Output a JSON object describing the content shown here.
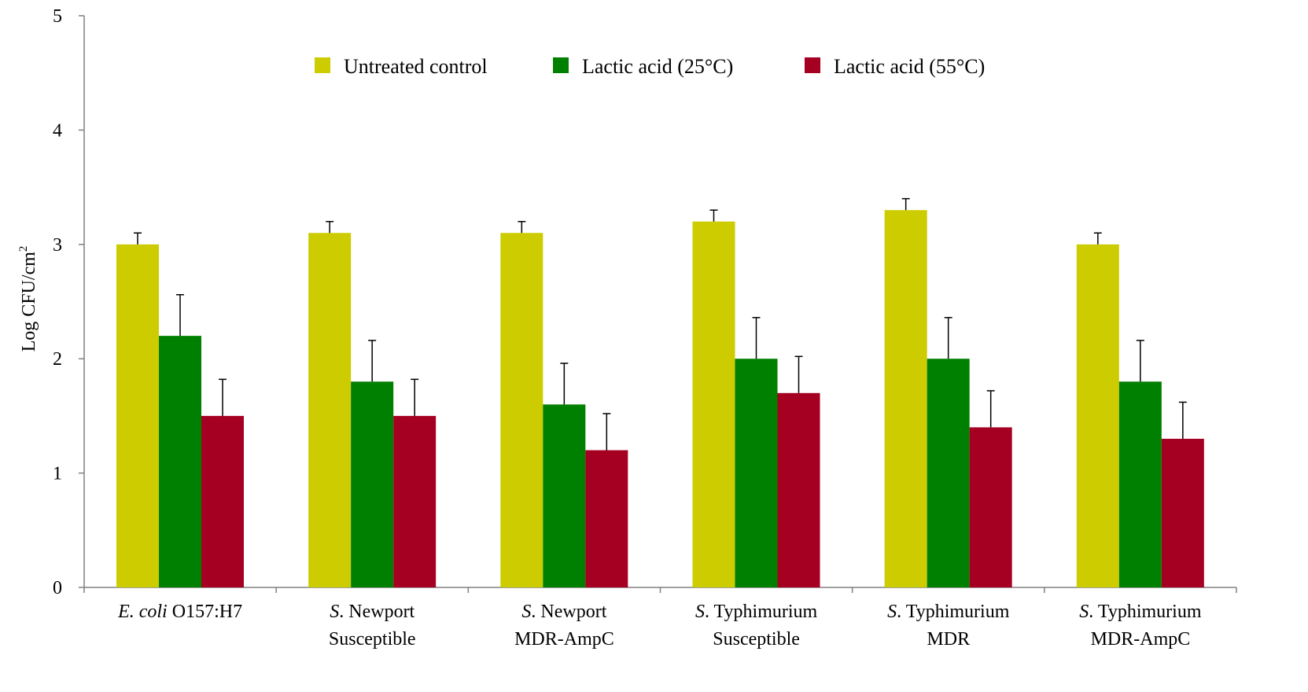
{
  "chart_data": {
    "type": "bar",
    "ylabel": "Log CFU/cm",
    "ylabel_superscript": "2",
    "ylim": [
      0,
      5
    ],
    "yticks": [
      "0",
      "1",
      "2",
      "3",
      "4",
      "5"
    ],
    "grid": false,
    "legend_position": "top",
    "categories": [
      {
        "italic": "E. coli",
        "rest": " O157:H7",
        "line2": ""
      },
      {
        "italic": "S",
        "rest": ". Newport",
        "line2": "Susceptible"
      },
      {
        "italic": "S",
        "rest": ". Newport",
        "line2": "MDR-AmpC"
      },
      {
        "italic": "S",
        "rest": ". Typhimurium",
        "line2": "Susceptible"
      },
      {
        "italic": "S",
        "rest": ". Typhimurium",
        "line2": "MDR"
      },
      {
        "italic": "S",
        "rest": ". Typhimurium",
        "line2": "MDR-AmpC"
      }
    ],
    "series": [
      {
        "name": "Untreated control",
        "color": "#cccc00",
        "values": [
          3.0,
          3.1,
          3.1,
          3.2,
          3.3,
          3.0
        ],
        "errors": [
          0.1,
          0.1,
          0.1,
          0.1,
          0.1,
          0.1
        ]
      },
      {
        "name": "Lactic acid (25°C)",
        "color": "#008000",
        "values": [
          2.2,
          1.8,
          1.6,
          2.0,
          2.0,
          1.8
        ],
        "errors": [
          0.36,
          0.36,
          0.36,
          0.36,
          0.36,
          0.36
        ]
      },
      {
        "name": "Lactic acid (55°C)",
        "color": "#a50021",
        "values": [
          1.5,
          1.5,
          1.2,
          1.7,
          1.4,
          1.3
        ],
        "errors": [
          0.32,
          0.32,
          0.32,
          0.32,
          0.32,
          0.32
        ]
      }
    ]
  }
}
